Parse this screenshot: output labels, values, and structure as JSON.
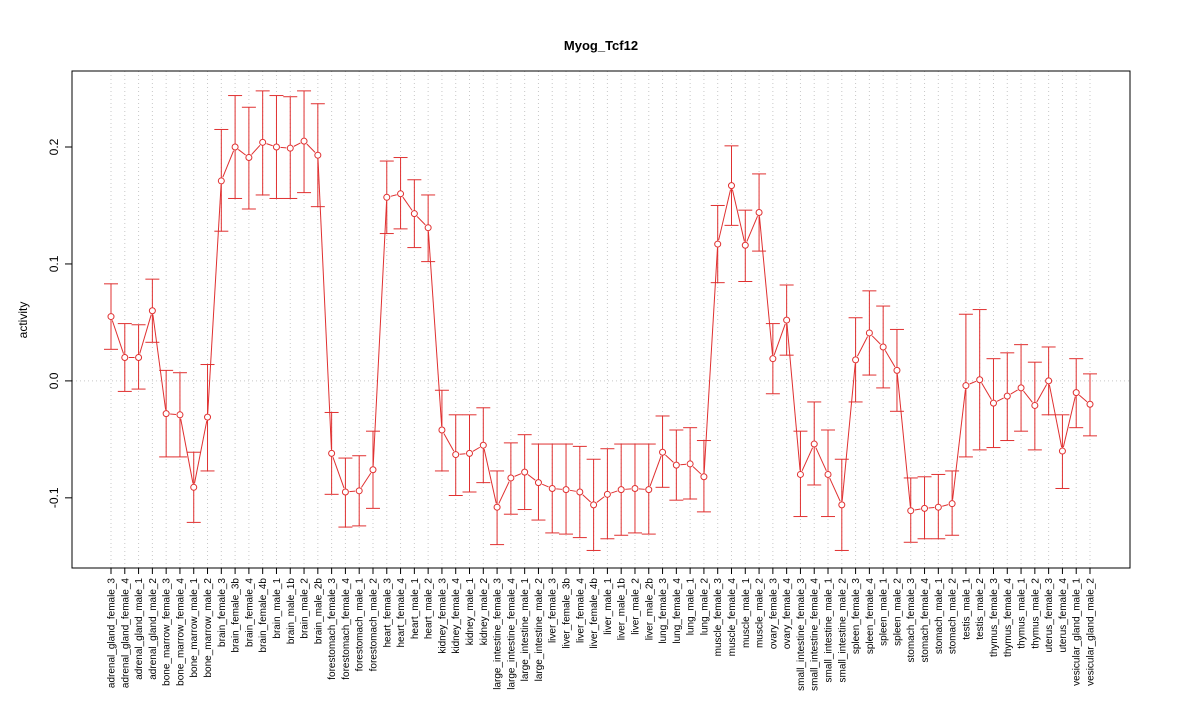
{
  "chart_data": {
    "type": "line",
    "title": "Myog_Tcf12",
    "xlabel": "",
    "ylabel": "activity",
    "ylim": [
      -0.16,
      0.265
    ],
    "yticks": [
      -0.1,
      0.0,
      0.1,
      0.2
    ],
    "ytick_labels": [
      "-0.1",
      "0.0",
      "0.1",
      "0.2"
    ],
    "grid": true,
    "colors": {
      "series": "#e03030",
      "grid": "#c8c8c8",
      "axis": "#000000"
    },
    "categories": [
      "adrenal_gland_female_3",
      "adrenal_gland_female_4",
      "adrenal_gland_male_1",
      "adrenal_gland_male_2",
      "bone_marrow_female_3",
      "bone_marrow_female_4",
      "bone_marrow_male_1",
      "bone_marrow_male_2",
      "brain_female_3",
      "brain_female_3b",
      "brain_female_4",
      "brain_female_4b",
      "brain_male_1",
      "brain_male_1b",
      "brain_male_2",
      "brain_male_2b",
      "forestomach_female_3",
      "forestomach_female_4",
      "forestomach_male_1",
      "forestomach_male_2",
      "heart_female_3",
      "heart_female_4",
      "heart_male_1",
      "heart_male_2",
      "kidney_female_3",
      "kidney_female_4",
      "kidney_male_1",
      "kidney_male_2",
      "large_intestine_female_3",
      "large_intestine_female_4",
      "large_intestine_male_1",
      "large_intestine_male_2",
      "liver_female_3",
      "liver_female_3b",
      "liver_female_4",
      "liver_female_4b",
      "liver_male_1",
      "liver_male_1b",
      "liver_male_2",
      "liver_male_2b",
      "lung_female_3",
      "lung_female_4",
      "lung_male_1",
      "lung_male_2",
      "muscle_female_3",
      "muscle_female_4",
      "muscle_male_1",
      "muscle_male_2",
      "ovary_female_3",
      "ovary_female_4",
      "small_intestine_female_3",
      "small_intestine_female_4",
      "small_intestine_male_1",
      "small_intestine_male_2",
      "spleen_female_3",
      "spleen_female_4",
      "spleen_male_1",
      "spleen_male_2",
      "stomach_female_3",
      "stomach_female_4",
      "stomach_male_1",
      "stomach_male_2",
      "testis_male_1",
      "testis_male_2",
      "thymus_female_3",
      "thymus_female_4",
      "thymus_male_1",
      "thymus_male_2",
      "uterus_female_3",
      "uterus_female_4",
      "vesicular_gland_male_1",
      "vesicular_gland_male_2"
    ],
    "values": [
      0.055,
      0.02,
      0.02,
      0.06,
      -0.028,
      -0.029,
      -0.091,
      -0.031,
      0.171,
      0.2,
      0.191,
      0.204,
      0.2,
      0.199,
      0.205,
      0.193,
      -0.062,
      -0.095,
      -0.094,
      -0.076,
      0.157,
      0.16,
      0.143,
      0.131,
      -0.042,
      -0.063,
      -0.062,
      -0.055,
      -0.108,
      -0.083,
      -0.078,
      -0.087,
      -0.092,
      -0.093,
      -0.095,
      -0.106,
      -0.097,
      -0.093,
      -0.092,
      -0.093,
      -0.061,
      -0.072,
      -0.071,
      -0.082,
      0.117,
      0.167,
      0.116,
      0.144,
      0.019,
      0.052,
      -0.08,
      -0.054,
      -0.08,
      -0.106,
      0.018,
      0.041,
      0.029,
      0.009,
      -0.111,
      -0.109,
      -0.108,
      -0.105,
      -0.004,
      0.001,
      -0.019,
      -0.013,
      -0.006,
      -0.021,
      0.0,
      -0.06,
      -0.01,
      -0.02
    ],
    "error_lower": [
      0.027,
      -0.009,
      -0.007,
      0.033,
      -0.065,
      -0.065,
      -0.121,
      -0.077,
      0.128,
      0.156,
      0.147,
      0.159,
      0.156,
      0.156,
      0.161,
      0.149,
      -0.097,
      -0.125,
      -0.124,
      -0.109,
      0.126,
      0.13,
      0.114,
      0.102,
      -0.077,
      -0.098,
      -0.095,
      -0.087,
      -0.14,
      -0.114,
      -0.11,
      -0.119,
      -0.13,
      -0.131,
      -0.134,
      -0.145,
      -0.135,
      -0.132,
      -0.13,
      -0.131,
      -0.091,
      -0.102,
      -0.101,
      -0.112,
      0.084,
      0.133,
      0.085,
      0.111,
      -0.011,
      0.022,
      -0.116,
      -0.089,
      -0.116,
      -0.145,
      -0.018,
      0.005,
      -0.006,
      -0.026,
      -0.138,
      -0.135,
      -0.135,
      -0.132,
      -0.065,
      -0.059,
      -0.057,
      -0.051,
      -0.043,
      -0.059,
      -0.029,
      -0.092,
      -0.04,
      -0.047
    ],
    "error_upper": [
      0.083,
      0.049,
      0.048,
      0.087,
      0.009,
      0.007,
      -0.061,
      0.014,
      0.215,
      0.244,
      0.234,
      0.248,
      0.244,
      0.243,
      0.248,
      0.237,
      -0.027,
      -0.066,
      -0.064,
      -0.043,
      0.188,
      0.191,
      0.172,
      0.159,
      -0.008,
      -0.029,
      -0.029,
      -0.023,
      -0.077,
      -0.053,
      -0.046,
      -0.054,
      -0.054,
      -0.054,
      -0.056,
      -0.067,
      -0.058,
      -0.054,
      -0.054,
      -0.054,
      -0.03,
      -0.042,
      -0.04,
      -0.051,
      0.15,
      0.201,
      0.146,
      0.177,
      0.049,
      0.082,
      -0.043,
      -0.018,
      -0.042,
      -0.067,
      0.054,
      0.077,
      0.064,
      0.044,
      -0.083,
      -0.082,
      -0.08,
      -0.077,
      0.057,
      0.061,
      0.019,
      0.024,
      0.031,
      0.016,
      0.029,
      -0.029,
      0.019,
      0.006
    ]
  }
}
